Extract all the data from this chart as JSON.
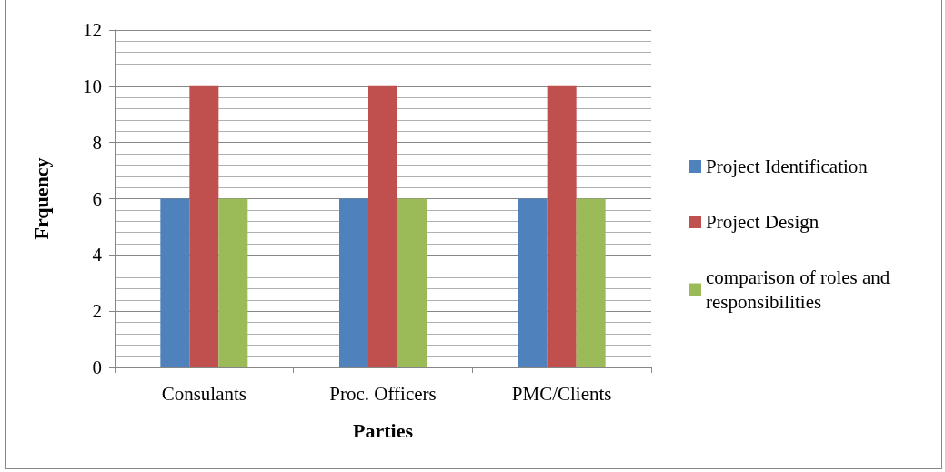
{
  "chart_data": {
    "type": "bar",
    "xlabel": "Parties",
    "ylabel": "Frquency",
    "categories": [
      "Consulants",
      "Proc. Officers",
      "PMC/Clients"
    ],
    "series": [
      {
        "name": "Project Identification",
        "color": "#4f81bd",
        "values": [
          6,
          6,
          6
        ]
      },
      {
        "name": "Project Design",
        "color": "#c0504d",
        "values": [
          10,
          10,
          10
        ]
      },
      {
        "name": "comparison of roles and responsibilities",
        "color": "#9bbb59",
        "values": [
          6,
          6,
          6
        ]
      }
    ],
    "ylim": [
      0,
      12
    ],
    "yticks": [
      0,
      2,
      4,
      6,
      8,
      10,
      12
    ],
    "grid": true,
    "legend": "right"
  }
}
